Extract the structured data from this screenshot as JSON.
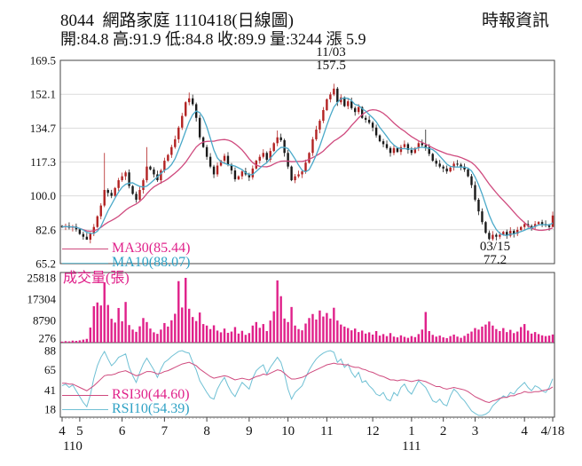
{
  "header": {
    "title": "8044  網路家庭 1110418(日線圖)",
    "source": "時報資訊",
    "quote_line": "開:84.8 高:91.9 低:84.8 收:89.9 量:3244 漲 5.9"
  },
  "price_pane": {
    "y_ticks": [
      "169.5",
      "152.1",
      "134.7",
      "117.3",
      "100.0",
      "82.6",
      "65.2"
    ],
    "ma30_label": "MA30(85.44)",
    "ma10_label": "MA10(88.07)",
    "peak_date": "11/03",
    "peak_value": "157.5",
    "trough_date": "03/15",
    "trough_value": "77.2"
  },
  "volume_pane": {
    "label": "成交量(張)",
    "y_ticks": [
      "25818",
      "17304",
      "8790",
      "276"
    ]
  },
  "rsi_pane": {
    "rsi30_label": "RSI30(44.60)",
    "rsi10_label": "RSI10(54.39)",
    "y_ticks": [
      "88",
      "65",
      "41",
      "18"
    ]
  },
  "x_axis": {
    "months": [
      {
        "label": "4",
        "i": 0
      },
      {
        "label": "5",
        "i": 5
      },
      {
        "label": "6",
        "i": 17
      },
      {
        "label": "7",
        "i": 29
      },
      {
        "label": "8",
        "i": 41
      },
      {
        "label": "9",
        "i": 53
      },
      {
        "label": "10",
        "i": 64
      },
      {
        "label": "11",
        "i": 75
      },
      {
        "label": "12",
        "i": 88
      },
      {
        "label": "1",
        "i": 99
      },
      {
        "label": "2",
        "i": 108
      },
      {
        "label": "3",
        "i": 117
      },
      {
        "label": "4",
        "i": 131
      },
      {
        "label": "4/18",
        "i": 139
      }
    ],
    "years": [
      {
        "label": "110",
        "i": 3
      },
      {
        "label": "111",
        "i": 99
      }
    ]
  },
  "colors": {
    "up": "#b22222",
    "down": "#1a1a1a",
    "ma10": "#4aa9c9",
    "ma30": "#cf4a7e",
    "volume": "#e0218a",
    "rsi10": "#6fc0d4",
    "rsi30": "#cf4a7e",
    "grid": "#dcdcdc",
    "frame": "#444444",
    "tick_text": "#111111"
  },
  "chart_data": {
    "type": "candlestick+volume+rsi",
    "title": "8044 網路家庭 1110418(日線圖)",
    "price_axis": {
      "min": 65.2,
      "max": 169.5,
      "ticks": [
        169.5,
        152.1,
        134.7,
        117.3,
        100.0,
        82.6,
        65.2
      ]
    },
    "volume_axis": {
      "max": 25818,
      "ticks": [
        25818,
        17304,
        8790,
        276
      ]
    },
    "rsi_axis": {
      "min": 18,
      "max": 88,
      "ticks": [
        88,
        65,
        41,
        18
      ]
    },
    "last_day": {
      "open": 84.8,
      "high": 91.9,
      "low": 84.8,
      "close": 89.9,
      "volume": 3244,
      "change": 5.9
    },
    "peak": {
      "date": "11/03",
      "value": 157.5,
      "i": 77
    },
    "trough": {
      "date": "03/15",
      "value": 77.2,
      "i": 121
    },
    "ma30_value": 85.44,
    "ma10_value": 88.07,
    "rsi30_value": 44.6,
    "rsi10_value": 54.39,
    "open_first": 84.5,
    "closes": [
      84.0,
      84.5,
      83.6,
      84.2,
      82.8,
      80.4,
      79.0,
      77.5,
      80.5,
      84.0,
      89.5,
      95.0,
      103.0,
      101.5,
      100.0,
      104.0,
      108.0,
      110.0,
      112.0,
      105.0,
      101.0,
      98.0,
      103.0,
      108.0,
      115.0,
      113.5,
      111.0,
      108.0,
      113.0,
      118.0,
      121.0,
      125.0,
      129.0,
      135.0,
      141.0,
      148.0,
      150.0,
      147.0,
      140.0,
      130.0,
      125.0,
      120.0,
      115.0,
      111.0,
      115.5,
      118.0,
      120.5,
      116.0,
      113.0,
      108.5,
      110.0,
      112.5,
      111.0,
      109.5,
      114.0,
      118.0,
      120.0,
      122.0,
      118.5,
      123.0,
      127.0,
      130.0,
      128.5,
      122.0,
      115.0,
      108.0,
      110.0,
      111.0,
      112.5,
      117.0,
      122.0,
      129.0,
      134.0,
      138.5,
      144.0,
      149.5,
      152.0,
      155.0,
      148.0,
      150.5,
      146.0,
      148.5,
      145.0,
      143.0,
      145.5,
      140.0,
      139.0,
      137.5,
      135.0,
      131.0,
      128.0,
      126.5,
      124.5,
      122.0,
      124.5,
      122.5,
      125.0,
      126.5,
      123.5,
      122.0,
      124.5,
      127.0,
      126.0,
      125.0,
      121.5,
      118.0,
      116.5,
      115.0,
      114.0,
      112.5,
      114.5,
      116.5,
      116.0,
      115.0,
      113.5,
      110.0,
      105.5,
      98.0,
      92.0,
      86.5,
      81.0,
      77.8,
      80.0,
      79.0,
      80.0,
      81.5,
      79.5,
      82.0,
      80.5,
      82.5,
      84.0,
      85.5,
      84.5,
      84.0,
      85.5,
      86.5,
      85.5,
      84.8,
      84.0,
      89.9
    ],
    "wick_highs": {
      "12": 122,
      "24": 125,
      "36": 153,
      "61": 133.5,
      "77": 157.5,
      "103": 134,
      "139": 91.9
    },
    "wick_lows": {
      "7": 77.4,
      "121": 77.2,
      "139": 84.8
    },
    "volumes": [
      400,
      600,
      500,
      800,
      700,
      900,
      1200,
      1500,
      6000,
      14500,
      16000,
      14800,
      24000,
      15000,
      9500,
      8000,
      13800,
      8500,
      16200,
      7000,
      5200,
      4300,
      6500,
      9800,
      8200,
      5600,
      4100,
      3500,
      5200,
      7800,
      6400,
      8900,
      11500,
      24500,
      14000,
      25818,
      13500,
      10200,
      8600,
      12000,
      7400,
      6800,
      5400,
      6900,
      4800,
      4100,
      5600,
      3900,
      4400,
      6200,
      3600,
      4700,
      3100,
      3800,
      6800,
      8200,
      5900,
      7400,
      4600,
      8800,
      12500,
      24800,
      18500,
      9600,
      8200,
      14200,
      6800,
      5400,
      4900,
      7600,
      9800,
      11400,
      9200,
      12800,
      10400,
      11800,
      9600,
      13900,
      8800,
      7200,
      6400,
      5800,
      4900,
      5600,
      4200,
      4800,
      3600,
      4100,
      3200,
      4600,
      2800,
      3400,
      2600,
      3800,
      2400,
      2100,
      2900,
      2300,
      1900,
      2600,
      2200,
      3400,
      5200,
      12200,
      4600,
      3100,
      2400,
      2800,
      2100,
      1800,
      2600,
      3200,
      2400,
      1900,
      2700,
      3600,
      4400,
      5800,
      5200,
      6400,
      7200,
      8400,
      6800,
      5400,
      4600,
      5800,
      4200,
      5100,
      3800,
      4400,
      6200,
      7400,
      4800,
      3600,
      4200,
      3400,
      2900,
      2600,
      2800,
      3244
    ],
    "rsi10": [
      46,
      48,
      44,
      47,
      40,
      33,
      26,
      21,
      35,
      55,
      70,
      80,
      87,
      78,
      70,
      74,
      80,
      82,
      84,
      68,
      58,
      50,
      62,
      72,
      79,
      72,
      65,
      56,
      66,
      74,
      77,
      81,
      84,
      87,
      88,
      86,
      85,
      74,
      65,
      52,
      45,
      38,
      32,
      30,
      42,
      50,
      56,
      46,
      38,
      33,
      42,
      50,
      46,
      42,
      55,
      64,
      68,
      71,
      60,
      68,
      74,
      80,
      74,
      60,
      42,
      30,
      38,
      42,
      46,
      56,
      65,
      72,
      78,
      82,
      85,
      87,
      88,
      86,
      74,
      78,
      68,
      72,
      62,
      56,
      62,
      50,
      52,
      46,
      42,
      36,
      34,
      38,
      30,
      28,
      38,
      34,
      44,
      48,
      40,
      36,
      44,
      52,
      48,
      44,
      36,
      28,
      26,
      30,
      24,
      22,
      34,
      42,
      38,
      32,
      28,
      22,
      16,
      13,
      10,
      9,
      12,
      15,
      22,
      26,
      30,
      34,
      32,
      38,
      36,
      42,
      46,
      50,
      44,
      40,
      46,
      44,
      40,
      38,
      44,
      54.39
    ],
    "rsi30": [
      49,
      49,
      48,
      48,
      46,
      44,
      42,
      40,
      43,
      46,
      50,
      54,
      58,
      59,
      59,
      60,
      62,
      63,
      64,
      62,
      60,
      58,
      59,
      61,
      63,
      63,
      62,
      60,
      61,
      63,
      64,
      66,
      68,
      70,
      72,
      73,
      74,
      72,
      70,
      66,
      63,
      60,
      57,
      55,
      56,
      57,
      58,
      57,
      55,
      53,
      54,
      55,
      54,
      53,
      55,
      57,
      58,
      60,
      59,
      61,
      63,
      65,
      64,
      61,
      57,
      54,
      54,
      55,
      56,
      58,
      61,
      63,
      65,
      67,
      69,
      71,
      72,
      73,
      72,
      72,
      71,
      71,
      69,
      68,
      68,
      66,
      65,
      63,
      62,
      60,
      58,
      57,
      55,
      53,
      53,
      52,
      53,
      53,
      52,
      51,
      52,
      53,
      52,
      51,
      49,
      47,
      45,
      45,
      43,
      42,
      43,
      44,
      43,
      42,
      41,
      39,
      36,
      33,
      31,
      29,
      27,
      26,
      28,
      29,
      31,
      32,
      32,
      34,
      34,
      36,
      37,
      39,
      38,
      38,
      39,
      39,
      40,
      41,
      42,
      44.6
    ]
  }
}
